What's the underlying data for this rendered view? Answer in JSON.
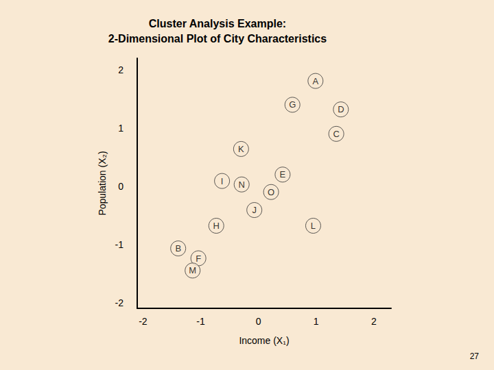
{
  "chart_data": {
    "type": "scatter",
    "title": "Cluster Analysis Example:\n2-Dimensional Plot of City Characteristics",
    "x_label": "Income (X₁)",
    "y_label": "Population (X₂)",
    "point_labels": [
      "A",
      "G",
      "D",
      "C",
      "K",
      "E",
      "I",
      "N",
      "O",
      "J",
      "H",
      "L",
      "B",
      "F",
      "M"
    ],
    "x": [
      0.99,
      0.59,
      1.43,
      1.35,
      -0.3,
      0.42,
      -0.63,
      -0.29,
      0.22,
      -0.07,
      -0.73,
      0.95,
      -1.39,
      -1.04,
      -1.14
    ],
    "values": [
      1.81,
      1.4,
      1.32,
      0.9,
      0.64,
      0.2,
      0.09,
      0.03,
      -0.1,
      -0.41,
      -0.68,
      -0.68,
      -1.07,
      -1.24,
      -1.45
    ],
    "xlim": [
      -2.1,
      2.3
    ],
    "ylim": [
      -2.1,
      2.2
    ],
    "xticks": [
      -2,
      -1,
      0,
      1,
      2
    ],
    "yticks": [
      -2,
      -1,
      0,
      1,
      2
    ],
    "grid": false,
    "marker": "circle",
    "color": "#333333",
    "page_number": "27"
  }
}
